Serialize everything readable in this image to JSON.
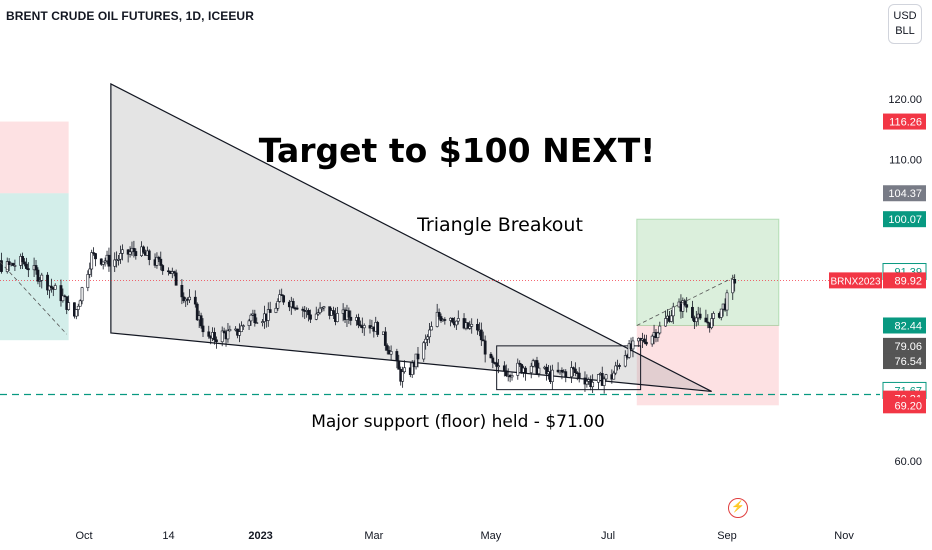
{
  "header": {
    "symbol_title": "BRENT CRUDE OIL FUTURES, 1D, ICEEUR",
    "currency": "USD",
    "unit": "BLL"
  },
  "chart_data": {
    "type": "candlestick",
    "symbol": "BRNX2023",
    "last_price": 89.92,
    "annotations": {
      "headline": "Target to $100 NEXT!",
      "pattern": "Triangle Breakout",
      "support_note": "Major support (floor) held - $71.00"
    },
    "x_axis": {
      "ticks": [
        {
          "label": "Oct",
          "date": "2022-10-01",
          "bold": false
        },
        {
          "label": "14",
          "date": "2022-11-14",
          "bold": false
        },
        {
          "label": "2023",
          "date": "2023-01-01",
          "bold": true
        },
        {
          "label": "Mar",
          "date": "2023-03-01",
          "bold": false
        },
        {
          "label": "May",
          "date": "2023-05-01",
          "bold": false
        },
        {
          "label": "Jul",
          "date": "2023-07-01",
          "bold": false
        },
        {
          "label": "Sep",
          "date": "2023-09-01",
          "bold": false
        },
        {
          "label": "Nov",
          "date": "2023-11-01",
          "bold": false
        }
      ]
    },
    "y_axis": {
      "ticks": [
        {
          "label": "120.00",
          "value": 120
        },
        {
          "label": "110.00",
          "value": 110
        },
        {
          "label": "60.00",
          "value": 60
        }
      ]
    },
    "price_labels": [
      {
        "text": "116.26",
        "value": 116.26,
        "color": "#f23645",
        "text_color": "#ffffff"
      },
      {
        "text": "104.37",
        "value": 104.37,
        "color": "#787b86",
        "text_color": "#ffffff"
      },
      {
        "text": "100.07",
        "value": 100.07,
        "color": "#089981",
        "text_color": "#ffffff"
      },
      {
        "text": "91.39",
        "value": 91.39,
        "color": "#ffffff",
        "text_color": "#089981",
        "border": "#089981"
      },
      {
        "text": "89.92",
        "value": 89.92,
        "color": "#f23645",
        "text_color": "#ffffff"
      },
      {
        "text": "82.44",
        "value": 82.44,
        "color": "#089981",
        "text_color": "#ffffff"
      },
      {
        "text": "79.06",
        "value": 79.06,
        "color": "#555555",
        "text_color": "#ffffff"
      },
      {
        "text": "76.54",
        "value": 76.54,
        "color": "#555555",
        "text_color": "#ffffff"
      },
      {
        "text": "71.67",
        "value": 71.67,
        "color": "#ffffff",
        "text_color": "#089981",
        "border": "#089981"
      },
      {
        "text": "70.31",
        "value": 70.31,
        "color": "#f23645",
        "text_color": "#ffffff"
      },
      {
        "text": "69.20",
        "value": 69.2,
        "color": "#f23645",
        "text_color": "#ffffff"
      }
    ],
    "support_level": 71.0,
    "triangle": {
      "apex_top": {
        "date": "2022-10-15",
        "value": 122.5
      },
      "base_left": {
        "date": "2022-10-15",
        "value": 81.2
      },
      "apex_right": {
        "date": "2023-08-24",
        "value": 71.5
      }
    },
    "zones": [
      {
        "kind": "stop",
        "from": "2022-08-01",
        "to": "2022-09-23",
        "low": 104.37,
        "high": 116.26,
        "color": "#f23645"
      },
      {
        "kind": "target",
        "from": "2022-08-01",
        "to": "2022-09-23",
        "low": 80.0,
        "high": 104.37,
        "color": "#22ab94"
      },
      {
        "kind": "target",
        "from": "2023-07-16",
        "to": "2023-09-28",
        "low": 82.44,
        "high": 100.07,
        "color": "#4caf50"
      },
      {
        "kind": "stop",
        "from": "2023-07-16",
        "to": "2023-09-28",
        "low": 69.2,
        "high": 82.44,
        "color": "#f23645"
      }
    ],
    "range_box": {
      "from": "2023-05-04",
      "to": "2023-07-18",
      "low": 71.8,
      "high": 79.06
    },
    "trend_x": [
      "2022-08-01",
      "2022-08-10",
      "2022-08-20",
      "2022-08-30",
      "2022-09-10",
      "2022-09-20",
      "2022-09-26",
      "2022-10-05",
      "2022-10-15",
      "2022-10-28",
      "2022-11-07",
      "2022-11-14",
      "2022-11-21",
      "2022-11-28",
      "2022-12-05",
      "2022-12-12",
      "2022-12-19",
      "2022-12-27",
      "2023-01-05",
      "2023-01-12",
      "2023-01-20",
      "2023-01-27",
      "2023-02-03",
      "2023-02-10",
      "2023-02-17",
      "2023-02-24",
      "2023-03-03",
      "2023-03-10",
      "2023-03-15",
      "2023-03-20",
      "2023-03-27",
      "2023-04-03",
      "2023-04-10",
      "2023-04-17",
      "2023-04-24",
      "2023-05-01",
      "2023-05-04",
      "2023-05-12",
      "2023-05-22",
      "2023-06-01",
      "2023-06-12",
      "2023-06-22",
      "2023-07-03",
      "2023-07-10",
      "2023-07-20",
      "2023-07-28",
      "2023-08-04",
      "2023-08-10",
      "2023-08-18",
      "2023-08-24",
      "2023-08-31",
      "2023-09-05"
    ],
    "trend_y": [
      98,
      95,
      92,
      93,
      90,
      87,
      84,
      94,
      93,
      95,
      93,
      92,
      88,
      85,
      80,
      81,
      81,
      84,
      84,
      87,
      86,
      84,
      85,
      84,
      84,
      83,
      82,
      78,
      74,
      75,
      79,
      84,
      84,
      82,
      82,
      76,
      75,
      75,
      76,
      74,
      75,
      73,
      74,
      78,
      80,
      82,
      85,
      86,
      83,
      83,
      86,
      90
    ]
  }
}
